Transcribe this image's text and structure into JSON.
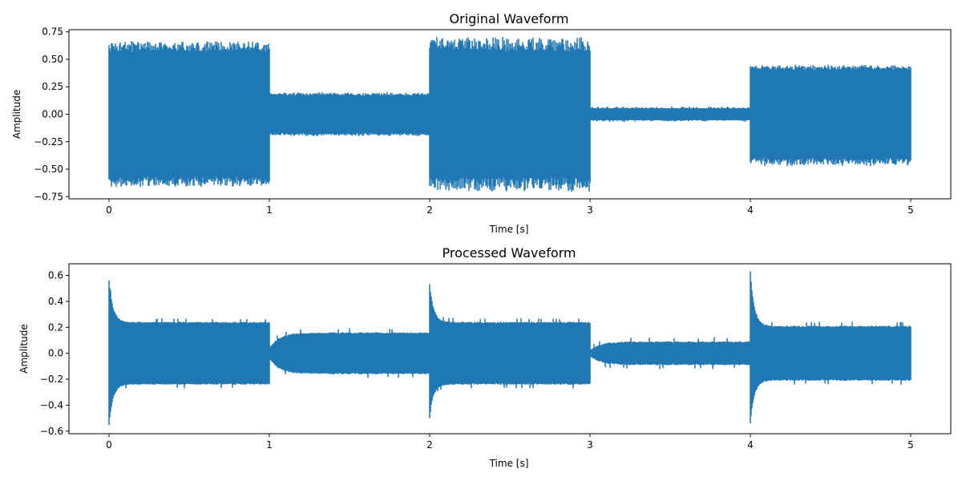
{
  "colors": {
    "series": "#1f77b4",
    "axes": "#000000",
    "background": "#ffffff"
  },
  "chart_data": [
    {
      "type": "line",
      "title": "Original Waveform",
      "xlabel": "Time [s]",
      "ylabel": "Amplitude",
      "xlim": [
        -0.25,
        5.25
      ],
      "ylim": [
        -0.77,
        0.77
      ],
      "xticks": [
        0,
        1,
        2,
        3,
        4,
        5
      ],
      "xtick_labels": [
        "0",
        "1",
        "2",
        "3",
        "4",
        "5"
      ],
      "yticks": [
        -0.75,
        -0.5,
        -0.25,
        0.0,
        0.25,
        0.5,
        0.75
      ],
      "ytick_labels": [
        "−0.75",
        "−0.50",
        "−0.25",
        "0.00",
        "0.25",
        "0.50",
        "0.75"
      ],
      "grid": false,
      "series": [
        {
          "segments": [
            {
              "x": [
                0,
                1
              ],
              "upper": 0.61,
              "lower": -0.61,
              "peak_max": 0.66,
              "peak_min": -0.66
            },
            {
              "x": [
                1,
                2
              ],
              "upper": 0.19,
              "lower": -0.19,
              "peak_max": 0.2,
              "peak_min": -0.2
            },
            {
              "x": [
                2,
                3
              ],
              "upper": 0.62,
              "lower": -0.62,
              "peak_max": 0.7,
              "peak_min": -0.7
            },
            {
              "x": [
                3,
                4
              ],
              "upper": 0.06,
              "lower": -0.06,
              "peak_max": 0.07,
              "peak_min": -0.07
            },
            {
              "x": [
                4,
                5
              ],
              "upper": 0.43,
              "lower": -0.43,
              "peak_max": 0.45,
              "peak_min": -0.47
            }
          ]
        }
      ]
    },
    {
      "type": "line",
      "title": "Processed Waveform",
      "xlabel": "Time [s]",
      "ylabel": "Amplitude",
      "xlim": [
        -0.25,
        5.25
      ],
      "ylim": [
        -0.62,
        0.69
      ],
      "xticks": [
        0,
        1,
        2,
        3,
        4,
        5
      ],
      "xtick_labels": [
        "0",
        "1",
        "2",
        "3",
        "4",
        "5"
      ],
      "yticks": [
        -0.6,
        -0.4,
        -0.2,
        0.0,
        0.2,
        0.4,
        0.6
      ],
      "ytick_labels": [
        "−0.6",
        "−0.4",
        "−0.2",
        "0.0",
        "0.2",
        "0.4",
        "0.6"
      ],
      "grid": false,
      "series": [
        {
          "segments": [
            {
              "x": [
                0,
                1
              ],
              "start": 0.57,
              "steady": 0.25,
              "peak_min": -0.56
            },
            {
              "x": [
                1,
                2
              ],
              "start": 0.05,
              "steady": 0.17,
              "rise": true
            },
            {
              "x": [
                2,
                3
              ],
              "start": 0.54,
              "steady": 0.25,
              "peak_min": -0.48
            },
            {
              "x": [
                3,
                4
              ],
              "start": 0.03,
              "steady": 0.1,
              "rise": true
            },
            {
              "x": [
                4,
                5
              ],
              "start": 0.64,
              "steady": 0.22,
              "peak_min": -0.55
            }
          ]
        }
      ]
    }
  ]
}
